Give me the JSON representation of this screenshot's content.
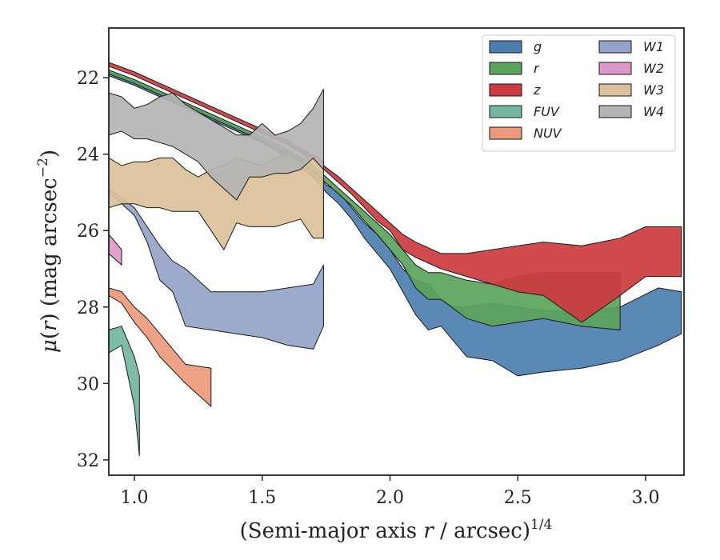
{
  "chart_data": {
    "type": "area",
    "title": "",
    "xlabel": "(Semi-major axis r / arcsec)",
    "xlabel_parts": {
      "open": "(Semi-major axis ",
      "var": "r",
      "rest": " / arcsec)",
      "sup": "1/4"
    },
    "ylabel_parts": {
      "mu": "μ",
      "open": "(",
      "var": "r",
      "rest": ") (mag arcsec",
      "sup": "−2",
      "close": ")"
    },
    "xlim": [
      0.9,
      3.15
    ],
    "ylim": [
      32.4,
      20.7
    ],
    "y_inverted": true,
    "xticks": [
      1.0,
      1.5,
      2.0,
      2.5,
      3.0
    ],
    "xtick_labels": [
      "1.0",
      "1.5",
      "2.0",
      "2.5",
      "3.0"
    ],
    "yticks": [
      22,
      24,
      26,
      28,
      30,
      32
    ],
    "ytick_labels": [
      "22",
      "24",
      "26",
      "28",
      "30",
      "32"
    ],
    "grid": false,
    "legend": {
      "placement": "top-right",
      "columns": 2
    },
    "series": [
      {
        "name": "g",
        "label": "g",
        "color": "#4c7fb0",
        "x": [
          0.9,
          1.0,
          1.1,
          1.2,
          1.3,
          1.4,
          1.5,
          1.6,
          1.7,
          1.75,
          1.8,
          1.85,
          1.9,
          1.95,
          2.0,
          2.05,
          2.1,
          2.15,
          2.2,
          2.25,
          2.3,
          2.4,
          2.5,
          2.6,
          2.75,
          2.9,
          3.05,
          3.14
        ],
        "y_upper": [
          21.85,
          22.1,
          22.4,
          22.7,
          23.0,
          23.3,
          23.6,
          24.0,
          24.4,
          24.8,
          25.0,
          25.4,
          25.8,
          26.1,
          26.5,
          27.0,
          27.3,
          27.4,
          27.8,
          28.0,
          28.0,
          27.9,
          28.0,
          28.1,
          28.1,
          28.0,
          27.5,
          27.6
        ],
        "y_lower": [
          21.95,
          22.2,
          22.5,
          22.8,
          23.1,
          23.4,
          23.7,
          24.1,
          24.6,
          25.0,
          25.3,
          25.7,
          26.2,
          26.6,
          27.0,
          27.6,
          28.2,
          28.6,
          28.5,
          28.9,
          29.3,
          29.4,
          29.8,
          29.7,
          29.6,
          29.4,
          29.0,
          28.7
        ]
      },
      {
        "name": "r",
        "label": "r",
        "color": "#5ba35b",
        "x": [
          0.9,
          1.0,
          1.1,
          1.2,
          1.3,
          1.4,
          1.5,
          1.6,
          1.7,
          1.75,
          1.8,
          1.85,
          1.9,
          1.95,
          2.0,
          2.05,
          2.1,
          2.15,
          2.2,
          2.3,
          2.4,
          2.5,
          2.6,
          2.75,
          2.9
        ],
        "y_upper": [
          21.8,
          22.05,
          22.35,
          22.65,
          22.95,
          23.25,
          23.55,
          23.9,
          24.3,
          24.6,
          24.9,
          25.2,
          25.5,
          25.8,
          26.1,
          26.5,
          26.9,
          27.1,
          27.1,
          27.3,
          27.4,
          27.2,
          27.1,
          27.1,
          27.1
        ],
        "y_lower": [
          21.9,
          22.15,
          22.45,
          22.75,
          23.05,
          23.35,
          23.65,
          24.0,
          24.45,
          24.75,
          25.05,
          25.35,
          25.75,
          26.1,
          26.5,
          26.9,
          27.5,
          27.8,
          27.8,
          28.3,
          28.5,
          28.4,
          28.3,
          28.5,
          28.6
        ]
      },
      {
        "name": "z",
        "label": "z",
        "color": "#cc3b3f",
        "x": [
          0.9,
          1.0,
          1.1,
          1.2,
          1.3,
          1.4,
          1.5,
          1.6,
          1.7,
          1.75,
          1.8,
          1.85,
          1.9,
          1.95,
          2.0,
          2.05,
          2.1,
          2.2,
          2.3,
          2.4,
          2.5,
          2.6,
          2.75,
          2.9,
          3.0,
          3.14
        ],
        "y_upper": [
          21.6,
          21.85,
          22.15,
          22.45,
          22.75,
          23.05,
          23.35,
          23.65,
          24.05,
          24.35,
          24.6,
          24.9,
          25.2,
          25.5,
          25.8,
          26.1,
          26.3,
          26.6,
          26.6,
          26.5,
          26.4,
          26.3,
          26.4,
          26.2,
          25.9,
          25.9
        ],
        "y_lower": [
          21.7,
          21.95,
          22.25,
          22.55,
          22.85,
          23.15,
          23.45,
          23.75,
          24.15,
          24.45,
          24.75,
          25.05,
          25.4,
          25.75,
          26.0,
          26.5,
          26.7,
          27.0,
          27.2,
          27.4,
          27.6,
          27.7,
          28.4,
          27.7,
          27.2,
          27.2
        ]
      },
      {
        "name": "FUV",
        "label": "FUV",
        "color": "#74b6a0",
        "x": [
          0.9,
          0.95,
          1.0,
          1.02
        ],
        "y_upper": [
          28.6,
          28.5,
          29.3,
          29.8
        ],
        "y_lower": [
          29.2,
          29.0,
          30.6,
          31.9
        ]
      },
      {
        "name": "NUV",
        "label": "NUV",
        "color": "#eb9a7b",
        "x": [
          0.9,
          0.95,
          1.0,
          1.05,
          1.1,
          1.2,
          1.3
        ],
        "y_upper": [
          27.5,
          27.6,
          28.0,
          28.3,
          28.7,
          29.5,
          29.6
        ],
        "y_lower": [
          27.7,
          27.9,
          28.4,
          28.8,
          29.3,
          30.0,
          30.6
        ]
      },
      {
        "name": "W1",
        "label": "W1",
        "color": "#94a3c8",
        "x": [
          0.9,
          1.0,
          1.05,
          1.1,
          1.15,
          1.2,
          1.3,
          1.4,
          1.5,
          1.6,
          1.7,
          1.74
        ],
        "y_upper": [
          24.9,
          25.4,
          25.9,
          26.4,
          26.8,
          27.0,
          27.6,
          27.6,
          27.6,
          27.5,
          27.4,
          26.9
        ],
        "y_lower": [
          25.0,
          25.6,
          26.3,
          27.3,
          27.6,
          28.5,
          28.6,
          28.7,
          28.8,
          29.0,
          29.1,
          28.5
        ]
      },
      {
        "name": "W2",
        "label": "W2",
        "color": "#dc98c6",
        "x": [
          0.9,
          0.95
        ],
        "y_upper": [
          26.1,
          26.5
        ],
        "y_lower": [
          26.6,
          26.9
        ]
      },
      {
        "name": "W3",
        "label": "W3",
        "color": "#dbc19b",
        "x": [
          0.9,
          0.95,
          1.0,
          1.05,
          1.1,
          1.15,
          1.2,
          1.25,
          1.3,
          1.35,
          1.4,
          1.45,
          1.5,
          1.55,
          1.6,
          1.65,
          1.7,
          1.74
        ],
        "y_upper": [
          24.1,
          24.3,
          24.2,
          24.2,
          24.1,
          24.1,
          24.4,
          24.6,
          24.4,
          24.3,
          24.1,
          24.2,
          24.3,
          24.1,
          24.0,
          24.2,
          24.0,
          24.2
        ],
        "y_lower": [
          25.4,
          25.3,
          25.3,
          25.4,
          25.4,
          25.5,
          25.5,
          25.5,
          26.0,
          26.5,
          25.8,
          25.9,
          25.9,
          25.9,
          25.8,
          25.7,
          26.2,
          26.2
        ]
      },
      {
        "name": "W4",
        "label": "W4",
        "color": "#b4b4b4",
        "x": [
          0.9,
          0.95,
          1.0,
          1.05,
          1.1,
          1.15,
          1.2,
          1.25,
          1.3,
          1.35,
          1.4,
          1.45,
          1.5,
          1.55,
          1.6,
          1.65,
          1.7,
          1.74
        ],
        "y_upper": [
          22.4,
          22.5,
          22.8,
          22.7,
          22.5,
          22.4,
          22.7,
          22.9,
          23.1,
          23.3,
          23.5,
          23.5,
          23.2,
          23.5,
          23.4,
          23.2,
          22.8,
          22.3
        ],
        "y_lower": [
          23.5,
          23.4,
          23.6,
          23.6,
          23.7,
          23.8,
          24.0,
          24.2,
          24.6,
          24.9,
          25.2,
          24.6,
          24.6,
          24.5,
          24.5,
          24.4,
          24.1,
          24.4
        ]
      }
    ]
  }
}
